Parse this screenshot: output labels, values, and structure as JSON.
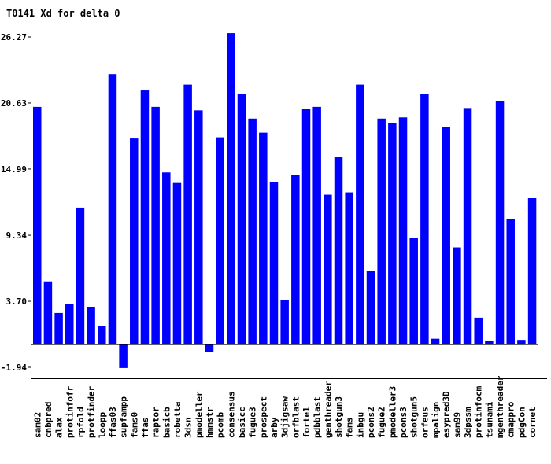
{
  "chart_data": {
    "type": "bar",
    "title": "T0141 Xd for delta 0",
    "xlabel": "",
    "ylabel": "",
    "ylim": [
      -1.94,
      26.27
    ],
    "yticks": [
      "26.27",
      "20.63",
      "14.99",
      "9.34",
      "3.70",
      "-1.94"
    ],
    "bar_color": "#0000ff",
    "grid": false,
    "categories": [
      "sam02",
      "cnbpred",
      "alax",
      "protinfofr",
      "rpfold",
      "protfinder",
      "loopp",
      "ffas03",
      "supfampp",
      "fams0",
      "ffas",
      "raptor",
      "basicb",
      "robetta",
      "3dsn",
      "pmodeller",
      "hmmstr",
      "pcomb",
      "consensus",
      "basicc",
      "fugue3",
      "prospect",
      "arby",
      "3djigsaw",
      "orfblast",
      "forte1",
      "pdbblast",
      "genthreader",
      "shotgun3",
      "fams",
      "inbgu",
      "pcons2",
      "fugue2",
      "pmodeller3",
      "pcons3",
      "shotgun5",
      "orfeus",
      "mpalign",
      "esypred3D",
      "sam99",
      "3dpssm",
      "protinfocm",
      "tsunami",
      "mgenthreader",
      "cmappro",
      "pdgCon",
      "cornet"
    ],
    "values": [
      20.3,
      5.4,
      2.7,
      3.5,
      11.7,
      3.2,
      1.6,
      23.1,
      -2.0,
      17.6,
      21.7,
      20.3,
      14.7,
      13.8,
      22.2,
      20.0,
      -0.6,
      17.7,
      26.6,
      21.4,
      19.3,
      18.1,
      13.9,
      3.8,
      14.5,
      20.1,
      20.3,
      12.8,
      16.0,
      13.0,
      22.2,
      6.3,
      19.3,
      18.9,
      19.4,
      9.1,
      21.4,
      0.5,
      18.6,
      8.3,
      20.2,
      2.3,
      0.3,
      20.8,
      10.7,
      0.4,
      12.5
    ]
  }
}
